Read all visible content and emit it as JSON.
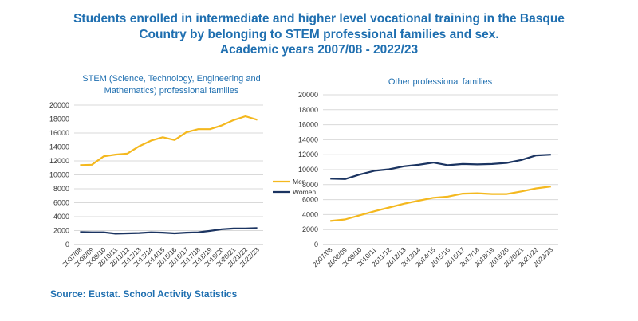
{
  "title": {
    "lines": [
      "Students enrolled in intermediate and higher level vocational training in the Basque",
      "Country by belonging to STEM professional families and sex.",
      "Academic years 2007/08 - 2022/23"
    ]
  },
  "source": "Source: Eustat. School Activity Statistics",
  "colors": {
    "men": "#f4b81e",
    "women": "#1b3461",
    "title": "#1f6fb0",
    "grid": "#d9d9d9"
  },
  "legend": [
    {
      "key": "men",
      "label": "Men"
    },
    {
      "key": "women",
      "label": "Women"
    }
  ],
  "chart_data": [
    {
      "type": "line",
      "title": "STEM (Science, Technology, Engineering and Mathematics) professional families",
      "title_lines": [
        "STEM (Science, Technology, Engineering and",
        "Mathematics) professional families"
      ],
      "categories": [
        "2007/08",
        "2008/09",
        "2009/10",
        "2010/11",
        "2011/12",
        "2012/13",
        "2013/14",
        "2014/15",
        "2015/16",
        "2016/17",
        "2017/18",
        "2018/19",
        "2019/20",
        "2020/21",
        "2021/22",
        "2022/23"
      ],
      "ylim": [
        0,
        20000
      ],
      "yticks": [
        0,
        2000,
        4000,
        6000,
        8000,
        10000,
        12000,
        14000,
        16000,
        18000,
        20000
      ],
      "grid": true,
      "series": [
        {
          "key": "men",
          "name": "Men",
          "values": [
            11400,
            11450,
            12650,
            12900,
            13050,
            14100,
            14900,
            15400,
            15000,
            16100,
            16550,
            16550,
            17100,
            17850,
            18400,
            17900
          ]
        },
        {
          "key": "women",
          "name": "Women",
          "values": [
            1800,
            1750,
            1750,
            1550,
            1600,
            1650,
            1750,
            1700,
            1600,
            1700,
            1750,
            1950,
            2200,
            2300,
            2300,
            2350
          ]
        }
      ]
    },
    {
      "type": "line",
      "title": "Other professional families",
      "title_lines": [
        "Other professional families"
      ],
      "categories": [
        "2007/08",
        "2008/09",
        "2009/10",
        "2010/11",
        "2011/12",
        "2012/13",
        "2013/14",
        "2014/15",
        "2015/16",
        "2016/17",
        "2017/18",
        "2018/19",
        "2019/20",
        "2020/21",
        "2021/22",
        "2022/23"
      ],
      "ylim": [
        0,
        20000
      ],
      "yticks": [
        0,
        2000,
        4000,
        6000,
        8000,
        10000,
        12000,
        14000,
        16000,
        18000,
        20000
      ],
      "grid": true,
      "series": [
        {
          "key": "men",
          "name": "Men",
          "values": [
            3150,
            3350,
            3900,
            4450,
            4950,
            5450,
            5850,
            6250,
            6400,
            6800,
            6850,
            6750,
            6750,
            7100,
            7500,
            7750
          ]
        },
        {
          "key": "women",
          "name": "Women",
          "values": [
            8800,
            8750,
            9350,
            9850,
            10050,
            10450,
            10650,
            10950,
            10600,
            10750,
            10700,
            10750,
            10900,
            11300,
            11900,
            12000
          ]
        }
      ]
    }
  ]
}
